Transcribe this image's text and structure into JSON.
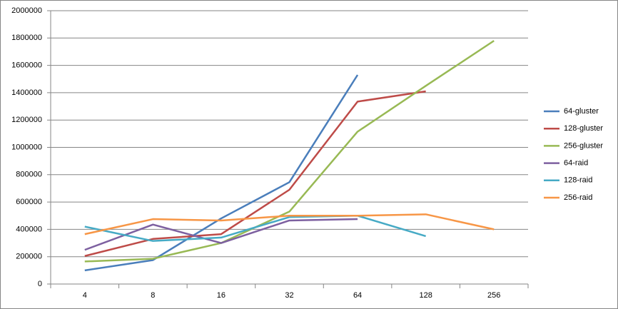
{
  "chart_data": {
    "type": "line",
    "categories": [
      "4",
      "8",
      "16",
      "32",
      "64",
      "128",
      "256"
    ],
    "series": [
      {
        "name": "64-gluster",
        "color": "#4a7ebb",
        "values": [
          100000,
          175000,
          480000,
          745000,
          1530000,
          null,
          null
        ]
      },
      {
        "name": "128-gluster",
        "color": "#be4b48",
        "values": [
          205000,
          330000,
          365000,
          690000,
          1335000,
          1410000,
          null
        ]
      },
      {
        "name": "256-gluster",
        "color": "#98b954",
        "values": [
          165000,
          185000,
          300000,
          530000,
          1115000,
          1450000,
          1780000
        ]
      },
      {
        "name": "64-raid",
        "color": "#7d60a0",
        "values": [
          250000,
          435000,
          300000,
          465000,
          475000,
          null,
          null
        ]
      },
      {
        "name": "128-raid",
        "color": "#46aac5",
        "values": [
          420000,
          315000,
          340000,
          490000,
          500000,
          350000,
          null
        ]
      },
      {
        "name": "256-raid",
        "color": "#f79646",
        "values": [
          365000,
          475000,
          465000,
          500000,
          500000,
          510000,
          400000
        ]
      }
    ],
    "ylim": [
      0,
      2000000
    ],
    "yticks": [
      0,
      200000,
      400000,
      600000,
      800000,
      1000000,
      1200000,
      1400000,
      1600000,
      1800000,
      2000000
    ],
    "grid": true,
    "legend": "right"
  }
}
